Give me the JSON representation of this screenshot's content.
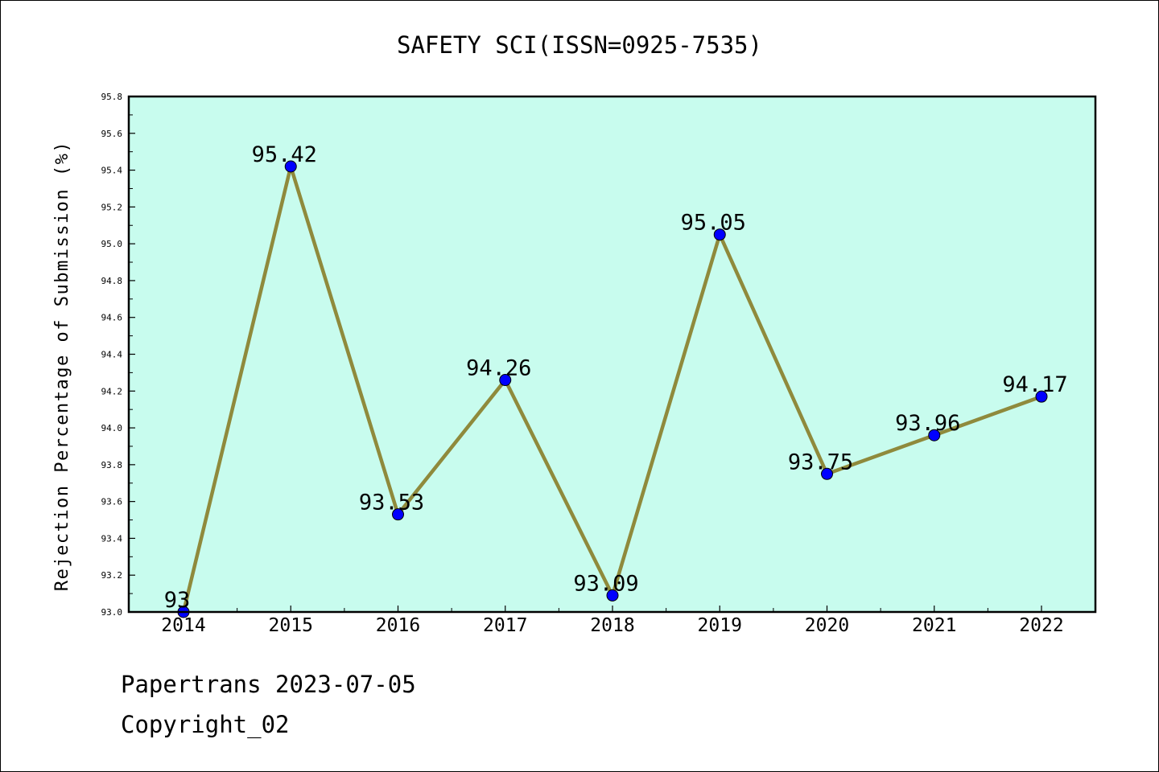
{
  "chart_data": {
    "type": "line",
    "title": "SAFETY SCI(ISSN=0925-7535)",
    "xlabel": "",
    "ylabel": "Rejection Percentage of Submission (%)",
    "categories": [
      "2014",
      "2015",
      "2016",
      "2017",
      "2018",
      "2019",
      "2020",
      "2021",
      "2022"
    ],
    "series": [
      {
        "values": [
          93,
          95.42,
          93.53,
          94.26,
          93.09,
          95.05,
          93.75,
          93.96,
          94.17
        ],
        "labels": [
          "93",
          "95.42",
          "93.53",
          "94.26",
          "93.09",
          "95.05",
          "93.75",
          "93.96",
          "94.17"
        ]
      }
    ],
    "ylim": [
      93.0,
      95.8
    ],
    "yticks": [
      "93.0",
      "93.2",
      "93.4",
      "93.6",
      "93.8",
      "94.0",
      "94.2",
      "94.4",
      "94.6",
      "94.8",
      "95.0",
      "95.2",
      "95.4",
      "95.6",
      "95.8"
    ],
    "grid": false,
    "colors": {
      "plot_background": "#c8fcee",
      "line": "#8f8a3c",
      "marker": "#0000ff"
    }
  },
  "footer": {
    "source": "Papertrans 2023-07-05",
    "copyright": "Copyright_02"
  }
}
